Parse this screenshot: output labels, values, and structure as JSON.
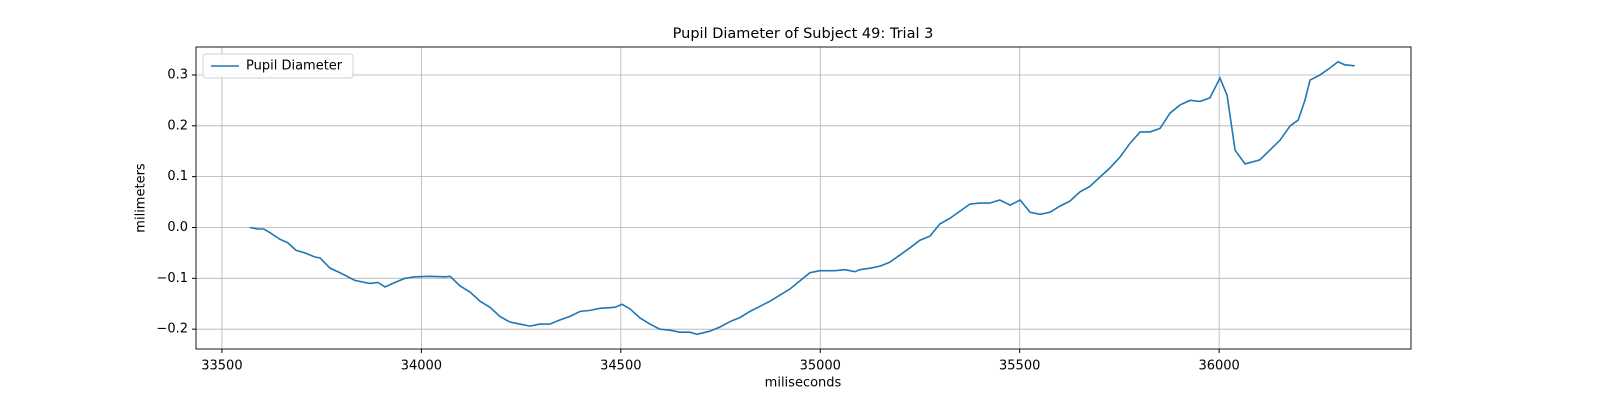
{
  "chart_data": {
    "type": "line",
    "title": "Pupil Diameter of Subject 49: Trial 3",
    "xlabel": "miliseconds",
    "ylabel": "milimeters",
    "x": [
      33570,
      33590,
      33605,
      33620,
      33645,
      33665,
      33686,
      33708,
      33733,
      33746,
      33771,
      33796,
      33833,
      33871,
      33891,
      33909,
      33934,
      33959,
      33984,
      34021,
      34059,
      34072,
      34097,
      34122,
      34147,
      34172,
      34197,
      34222,
      34247,
      34272,
      34297,
      34322,
      34347,
      34372,
      34398,
      34423,
      34448,
      34485,
      34503,
      34523,
      34548,
      34573,
      34598,
      34623,
      34648,
      34673,
      34691,
      34723,
      34748,
      34774,
      34799,
      34824,
      34849,
      34874,
      34899,
      34924,
      34949,
      34974,
      34999,
      35037,
      35062,
      35087,
      35099,
      35125,
      35150,
      35175,
      35200,
      35225,
      35250,
      35275,
      35300,
      35325,
      35350,
      35375,
      35400,
      35425,
      35450,
      35476,
      35501,
      35526,
      35551,
      35576,
      35601,
      35626,
      35651,
      35676,
      35701,
      35726,
      35751,
      35777,
      35802,
      35827,
      35852,
      35877,
      35902,
      35927,
      35952,
      35977,
      36002,
      36020,
      36040,
      36065,
      36102,
      36127,
      36153,
      36178,
      36198,
      36215,
      36228,
      36253,
      36278,
      36298,
      36315,
      36340
    ],
    "series": [
      {
        "name": "Pupil Diameter",
        "color": "#1f77b4",
        "values": [
          0.0,
          -0.003,
          -0.003,
          -0.01,
          -0.023,
          -0.03,
          -0.045,
          -0.05,
          -0.058,
          -0.06,
          -0.08,
          -0.089,
          -0.104,
          -0.11,
          -0.108,
          -0.117,
          -0.108,
          -0.1,
          -0.097,
          -0.096,
          -0.097,
          -0.096,
          -0.115,
          -0.127,
          -0.145,
          -0.157,
          -0.175,
          -0.186,
          -0.19,
          -0.194,
          -0.19,
          -0.19,
          -0.182,
          -0.175,
          -0.165,
          -0.163,
          -0.159,
          -0.157,
          -0.151,
          -0.16,
          -0.178,
          -0.19,
          -0.2,
          -0.202,
          -0.206,
          -0.206,
          -0.21,
          -0.204,
          -0.196,
          -0.185,
          -0.177,
          -0.165,
          -0.155,
          -0.145,
          -0.133,
          -0.121,
          -0.105,
          -0.089,
          -0.085,
          -0.085,
          -0.083,
          -0.087,
          -0.083,
          -0.08,
          -0.076,
          -0.068,
          -0.054,
          -0.04,
          -0.025,
          -0.017,
          0.007,
          0.018,
          0.032,
          0.046,
          0.048,
          0.048,
          0.054,
          0.044,
          0.054,
          0.03,
          0.026,
          0.03,
          0.042,
          0.052,
          0.07,
          0.081,
          0.099,
          0.117,
          0.138,
          0.166,
          0.188,
          0.188,
          0.195,
          0.225,
          0.241,
          0.25,
          0.248,
          0.255,
          0.294,
          0.26,
          0.152,
          0.125,
          0.133,
          0.152,
          0.172,
          0.2,
          0.211,
          0.25,
          0.29,
          0.3,
          0.314,
          0.326,
          0.32,
          0.318
        ]
      }
    ],
    "xlim": [
      33435,
      36481
    ],
    "ylim": [
      -0.239,
      0.355
    ],
    "xticks": [
      33500,
      34000,
      34500,
      35000,
      35500,
      36000
    ],
    "yticks": [
      {
        "value": -0.2,
        "label": "−0.2"
      },
      {
        "value": -0.1,
        "label": "−0.1"
      },
      {
        "value": 0,
        "label": "0.0"
      },
      0.1,
      0.2,
      0.3
    ],
    "grid": true,
    "legend": "upper left"
  }
}
